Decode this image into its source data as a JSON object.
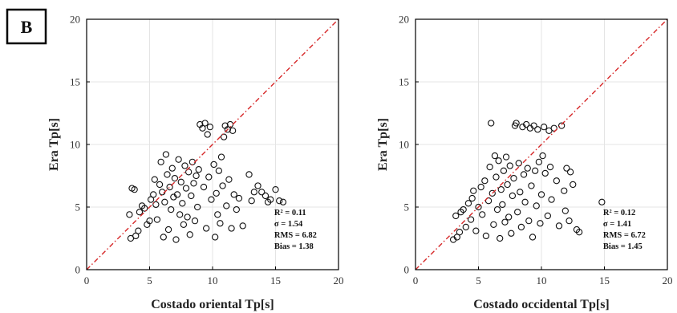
{
  "panel_label": "B",
  "colors": {
    "marker": "#111111",
    "reference_line": "#d62728",
    "frame": "#000000",
    "background": "#ffffff"
  },
  "chart_data": [
    {
      "type": "scatter",
      "xlabel": "Costado oriental Tp[s]",
      "ylabel": "Era Tp[s]",
      "xlim": [
        0,
        20
      ],
      "ylim": [
        0,
        20
      ],
      "xticks": [
        0,
        5,
        10,
        15,
        20
      ],
      "yticks": [
        0,
        5,
        10,
        15,
        20
      ],
      "grid": true,
      "reference_line": {
        "style": "dash-dot",
        "color": "#d62728",
        "from": [
          0,
          0
        ],
        "to": [
          20,
          20
        ]
      },
      "stats": {
        "r2": "R² = 0.11",
        "sigma": "σ = 1.54",
        "rms": "RMS = 6.82",
        "bias": "Bias = 1.38"
      },
      "points": [
        [
          3.6,
          6.5
        ],
        [
          3.8,
          6.4
        ],
        [
          3.4,
          4.4
        ],
        [
          3.5,
          2.5
        ],
        [
          3.9,
          2.7
        ],
        [
          4.1,
          3.1
        ],
        [
          4.2,
          4.6
        ],
        [
          4.4,
          5.1
        ],
        [
          4.6,
          4.9
        ],
        [
          4.8,
          3.6
        ],
        [
          5.0,
          3.9
        ],
        [
          5.1,
          5.6
        ],
        [
          5.3,
          6.0
        ],
        [
          5.4,
          7.2
        ],
        [
          5.5,
          5.2
        ],
        [
          5.6,
          4.0
        ],
        [
          5.8,
          6.8
        ],
        [
          5.9,
          8.6
        ],
        [
          6.0,
          6.2
        ],
        [
          6.1,
          2.6
        ],
        [
          6.2,
          5.4
        ],
        [
          6.3,
          9.2
        ],
        [
          6.4,
          7.6
        ],
        [
          6.5,
          3.2
        ],
        [
          6.6,
          6.6
        ],
        [
          6.7,
          4.8
        ],
        [
          6.8,
          8.1
        ],
        [
          6.9,
          5.8
        ],
        [
          7.0,
          7.3
        ],
        [
          7.1,
          2.4
        ],
        [
          7.2,
          6.0
        ],
        [
          7.3,
          8.8
        ],
        [
          7.4,
          4.4
        ],
        [
          7.5,
          7.0
        ],
        [
          7.6,
          5.3
        ],
        [
          7.7,
          3.6
        ],
        [
          7.8,
          8.3
        ],
        [
          7.9,
          6.5
        ],
        [
          8.0,
          4.2
        ],
        [
          8.1,
          7.8
        ],
        [
          8.2,
          2.8
        ],
        [
          8.3,
          5.9
        ],
        [
          8.4,
          8.6
        ],
        [
          8.5,
          6.9
        ],
        [
          8.6,
          3.9
        ],
        [
          8.7,
          7.5
        ],
        [
          8.8,
          5.0
        ],
        [
          8.9,
          8.0
        ],
        [
          9.0,
          11.6
        ],
        [
          9.2,
          11.3
        ],
        [
          9.4,
          11.7
        ],
        [
          9.6,
          10.8
        ],
        [
          9.8,
          11.4
        ],
        [
          9.3,
          6.6
        ],
        [
          9.5,
          3.3
        ],
        [
          9.7,
          7.4
        ],
        [
          9.9,
          5.6
        ],
        [
          10.1,
          8.4
        ],
        [
          10.2,
          2.6
        ],
        [
          10.3,
          6.1
        ],
        [
          10.4,
          4.4
        ],
        [
          10.5,
          7.9
        ],
        [
          10.6,
          3.7
        ],
        [
          10.7,
          9.0
        ],
        [
          10.8,
          6.7
        ],
        [
          10.9,
          10.6
        ],
        [
          11.0,
          11.5
        ],
        [
          11.2,
          11.2
        ],
        [
          11.4,
          11.6
        ],
        [
          11.6,
          11.1
        ],
        [
          11.1,
          5.1
        ],
        [
          11.3,
          7.2
        ],
        [
          11.5,
          3.3
        ],
        [
          11.7,
          6.0
        ],
        [
          11.9,
          4.8
        ],
        [
          12.1,
          5.7
        ],
        [
          12.4,
          3.5
        ],
        [
          12.9,
          7.6
        ],
        [
          13.1,
          5.5
        ],
        [
          13.6,
          6.7
        ],
        [
          13.9,
          6.2
        ],
        [
          14.2,
          5.9
        ],
        [
          14.6,
          5.6
        ],
        [
          15.0,
          6.4
        ],
        [
          15.3,
          5.5
        ],
        [
          15.6,
          5.4
        ],
        [
          14.4,
          5.4
        ],
        [
          13.3,
          6.2
        ]
      ]
    },
    {
      "type": "scatter",
      "xlabel": "Costado occidental Tp[s]",
      "ylabel": "Era Tp[s]",
      "xlim": [
        0,
        20
      ],
      "ylim": [
        0,
        20
      ],
      "xticks": [
        0,
        5,
        10,
        15,
        20
      ],
      "yticks": [
        0,
        5,
        10,
        15,
        20
      ],
      "grid": true,
      "reference_line": {
        "style": "dash-dot",
        "color": "#d62728",
        "from": [
          0,
          0
        ],
        "to": [
          20,
          20
        ]
      },
      "stats": {
        "r2": "R² = 0.12",
        "sigma": "σ = 1.41",
        "rms": "RMS = 6.72",
        "bias": "Bias = 1.45"
      },
      "points": [
        [
          3.0,
          2.4
        ],
        [
          3.2,
          4.3
        ],
        [
          3.3,
          2.6
        ],
        [
          3.5,
          3.0
        ],
        [
          3.6,
          4.6
        ],
        [
          3.8,
          4.8
        ],
        [
          4.0,
          3.4
        ],
        [
          4.2,
          5.3
        ],
        [
          4.4,
          4.0
        ],
        [
          4.5,
          5.7
        ],
        [
          4.6,
          6.3
        ],
        [
          4.8,
          3.1
        ],
        [
          5.0,
          5.0
        ],
        [
          5.2,
          6.6
        ],
        [
          5.3,
          4.4
        ],
        [
          5.5,
          7.1
        ],
        [
          5.6,
          2.7
        ],
        [
          5.8,
          5.5
        ],
        [
          5.9,
          8.2
        ],
        [
          6.0,
          11.7
        ],
        [
          6.1,
          6.1
        ],
        [
          6.2,
          3.6
        ],
        [
          6.3,
          9.1
        ],
        [
          6.4,
          7.4
        ],
        [
          6.5,
          4.8
        ],
        [
          6.6,
          8.7
        ],
        [
          6.7,
          2.5
        ],
        [
          6.8,
          6.4
        ],
        [
          6.9,
          5.2
        ],
        [
          7.0,
          7.9
        ],
        [
          7.1,
          3.8
        ],
        [
          7.2,
          9.0
        ],
        [
          7.3,
          6.8
        ],
        [
          7.4,
          4.2
        ],
        [
          7.5,
          8.3
        ],
        [
          7.6,
          2.9
        ],
        [
          7.7,
          5.9
        ],
        [
          7.8,
          7.3
        ],
        [
          7.9,
          11.5
        ],
        [
          8.0,
          11.7
        ],
        [
          8.1,
          4.6
        ],
        [
          8.2,
          8.5
        ],
        [
          8.3,
          6.2
        ],
        [
          8.4,
          3.4
        ],
        [
          8.5,
          11.4
        ],
        [
          8.6,
          7.6
        ],
        [
          8.7,
          5.4
        ],
        [
          8.8,
          11.6
        ],
        [
          8.9,
          8.1
        ],
        [
          9.0,
          3.9
        ],
        [
          9.1,
          11.3
        ],
        [
          9.2,
          6.7
        ],
        [
          9.3,
          2.6
        ],
        [
          9.4,
          11.5
        ],
        [
          9.5,
          7.9
        ],
        [
          9.6,
          5.1
        ],
        [
          9.7,
          11.2
        ],
        [
          9.8,
          8.6
        ],
        [
          9.9,
          3.7
        ],
        [
          10.0,
          6.0
        ],
        [
          10.2,
          11.4
        ],
        [
          10.3,
          7.7
        ],
        [
          10.5,
          4.3
        ],
        [
          10.6,
          11.1
        ],
        [
          10.7,
          8.2
        ],
        [
          10.8,
          5.6
        ],
        [
          11.0,
          11.3
        ],
        [
          11.2,
          7.1
        ],
        [
          11.4,
          3.5
        ],
        [
          11.6,
          11.5
        ],
        [
          11.8,
          6.3
        ],
        [
          12.0,
          8.1
        ],
        [
          12.2,
          3.9
        ],
        [
          12.5,
          6.8
        ],
        [
          12.8,
          3.2
        ],
        [
          13.0,
          3.0
        ],
        [
          14.8,
          5.4
        ],
        [
          11.9,
          4.7
        ],
        [
          12.3,
          7.8
        ],
        [
          10.1,
          9.1
        ]
      ]
    }
  ]
}
